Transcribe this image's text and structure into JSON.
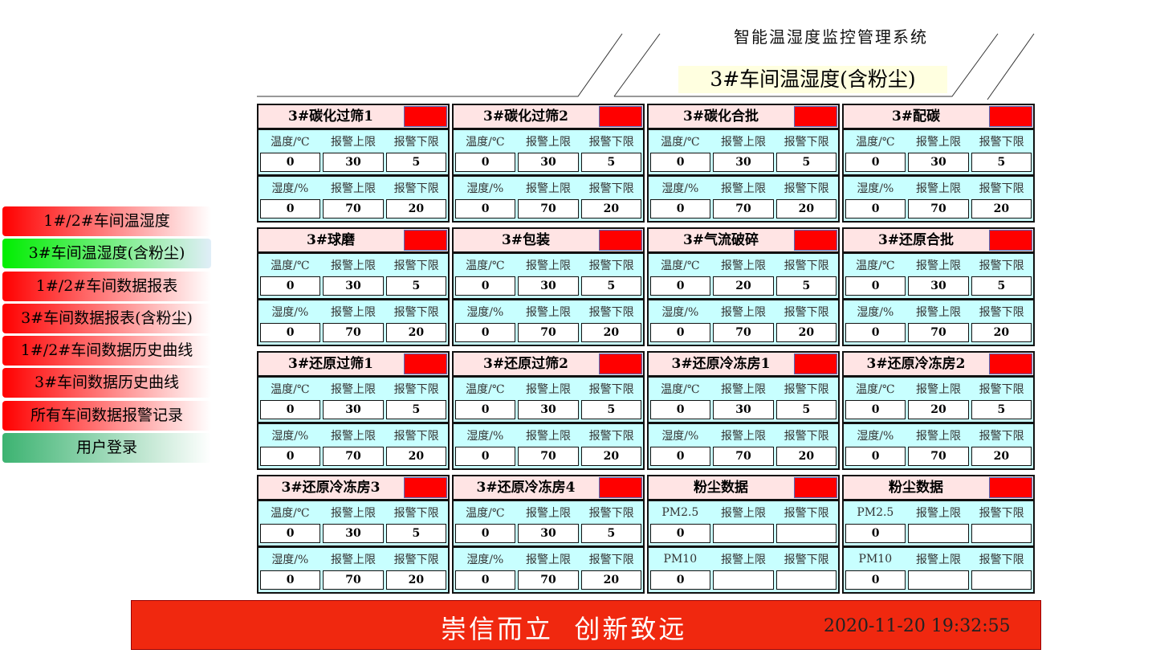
{
  "header": {
    "system_title": "智能温湿度监控管理系统",
    "page_title": "3#车间温湿度(含粉尘)"
  },
  "nav": [
    {
      "label": "1#/2#车间温湿度",
      "state": "normal"
    },
    {
      "label": "3#车间温湿度(含粉尘)",
      "state": "active"
    },
    {
      "label": "1#/2#车间数据报表",
      "state": "normal"
    },
    {
      "label": "3#车间数据报表(含粉尘)",
      "state": "normal"
    },
    {
      "label": "1#/2#车间数据历史曲线",
      "state": "normal"
    },
    {
      "label": "3#车间数据历史曲线",
      "state": "normal"
    },
    {
      "label": "所有车间数据报警记录",
      "state": "normal"
    },
    {
      "label": "用户登录",
      "state": "login"
    }
  ],
  "colors": {
    "alarm": "#ff0000",
    "card_bg": "#c8ffff",
    "header_bg": "#ffe4e4",
    "footer": "#f0280f"
  },
  "cards": [
    {
      "title": "3#碳化过筛1",
      "s1": [
        "温度/℃",
        "报警上限",
        "报警下限"
      ],
      "v1": [
        "0",
        "30",
        "5"
      ],
      "s2": [
        "湿度/%",
        "报警上限",
        "报警下限"
      ],
      "v2": [
        "0",
        "70",
        "20"
      ]
    },
    {
      "title": "3#碳化过筛2",
      "s1": [
        "温度/℃",
        "报警上限",
        "报警下限"
      ],
      "v1": [
        "0",
        "30",
        "5"
      ],
      "s2": [
        "湿度/%",
        "报警上限",
        "报警下限"
      ],
      "v2": [
        "0",
        "70",
        "20"
      ]
    },
    {
      "title": "3#碳化合批",
      "s1": [
        "温度/℃",
        "报警上限",
        "报警下限"
      ],
      "v1": [
        "0",
        "30",
        "5"
      ],
      "s2": [
        "湿度/%",
        "报警上限",
        "报警下限"
      ],
      "v2": [
        "0",
        "70",
        "20"
      ]
    },
    {
      "title": "3#配碳",
      "s1": [
        "温度/℃",
        "报警上限",
        "报警下限"
      ],
      "v1": [
        "0",
        "30",
        "5"
      ],
      "s2": [
        "湿度/%",
        "报警上限",
        "报警下限"
      ],
      "v2": [
        "0",
        "70",
        "20"
      ]
    },
    {
      "title": "3#球磨",
      "s1": [
        "温度/℃",
        "报警上限",
        "报警下限"
      ],
      "v1": [
        "0",
        "30",
        "5"
      ],
      "s2": [
        "湿度/%",
        "报警上限",
        "报警下限"
      ],
      "v2": [
        "0",
        "70",
        "20"
      ]
    },
    {
      "title": "3#包装",
      "s1": [
        "温度/℃",
        "报警上限",
        "报警下限"
      ],
      "v1": [
        "0",
        "30",
        "5"
      ],
      "s2": [
        "湿度/%",
        "报警上限",
        "报警下限"
      ],
      "v2": [
        "0",
        "70",
        "20"
      ]
    },
    {
      "title": "3#气流破碎",
      "s1": [
        "温度/℃",
        "报警上限",
        "报警下限"
      ],
      "v1": [
        "0",
        "20",
        "5"
      ],
      "s2": [
        "湿度/%",
        "报警上限",
        "报警下限"
      ],
      "v2": [
        "0",
        "70",
        "20"
      ]
    },
    {
      "title": "3#还原合批",
      "s1": [
        "温度/℃",
        "报警上限",
        "报警下限"
      ],
      "v1": [
        "0",
        "30",
        "5"
      ],
      "s2": [
        "湿度/%",
        "报警上限",
        "报警下限"
      ],
      "v2": [
        "0",
        "70",
        "20"
      ]
    },
    {
      "title": "3#还原过筛1",
      "s1": [
        "温度/℃",
        "报警上限",
        "报警下限"
      ],
      "v1": [
        "0",
        "30",
        "5"
      ],
      "s2": [
        "湿度/%",
        "报警上限",
        "报警下限"
      ],
      "v2": [
        "0",
        "70",
        "20"
      ]
    },
    {
      "title": "3#还原过筛2",
      "s1": [
        "温度/℃",
        "报警上限",
        "报警下限"
      ],
      "v1": [
        "0",
        "30",
        "5"
      ],
      "s2": [
        "湿度/%",
        "报警上限",
        "报警下限"
      ],
      "v2": [
        "0",
        "70",
        "20"
      ]
    },
    {
      "title": "3#还原冷冻房1",
      "s1": [
        "温度/℃",
        "报警上限",
        "报警下限"
      ],
      "v1": [
        "0",
        "30",
        "5"
      ],
      "s2": [
        "湿度/%",
        "报警上限",
        "报警下限"
      ],
      "v2": [
        "0",
        "70",
        "20"
      ]
    },
    {
      "title": "3#还原冷冻房2",
      "s1": [
        "温度/℃",
        "报警上限",
        "报警下限"
      ],
      "v1": [
        "0",
        "20",
        "5"
      ],
      "s2": [
        "湿度/%",
        "报警上限",
        "报警下限"
      ],
      "v2": [
        "0",
        "70",
        "20"
      ]
    },
    {
      "title": "3#还原冷冻房3",
      "s1": [
        "温度/℃",
        "报警上限",
        "报警下限"
      ],
      "v1": [
        "0",
        "30",
        "5"
      ],
      "s2": [
        "湿度/%",
        "报警上限",
        "报警下限"
      ],
      "v2": [
        "0",
        "70",
        "20"
      ]
    },
    {
      "title": "3#还原冷冻房4",
      "s1": [
        "温度/℃",
        "报警上限",
        "报警下限"
      ],
      "v1": [
        "0",
        "30",
        "5"
      ],
      "s2": [
        "湿度/%",
        "报警上限",
        "报警下限"
      ],
      "v2": [
        "0",
        "70",
        "20"
      ]
    },
    {
      "title": "粉尘数据",
      "s1": [
        "PM2.5",
        "报警上限",
        "报警下限"
      ],
      "v1": [
        "0",
        "",
        ""
      ],
      "s2": [
        "PM10",
        "报警上限",
        "报警下限"
      ],
      "v2": [
        "0",
        "",
        ""
      ]
    },
    {
      "title": "粉尘数据",
      "s1": [
        "PM2.5",
        "报警上限",
        "报警下限"
      ],
      "v1": [
        "0",
        "",
        ""
      ],
      "s2": [
        "PM10",
        "报警上限",
        "报警下限"
      ],
      "v2": [
        "0",
        "",
        ""
      ]
    }
  ],
  "footer": {
    "slogan": "崇信而立  创新致远",
    "datetime": "2020-11-20 19:32:55"
  }
}
